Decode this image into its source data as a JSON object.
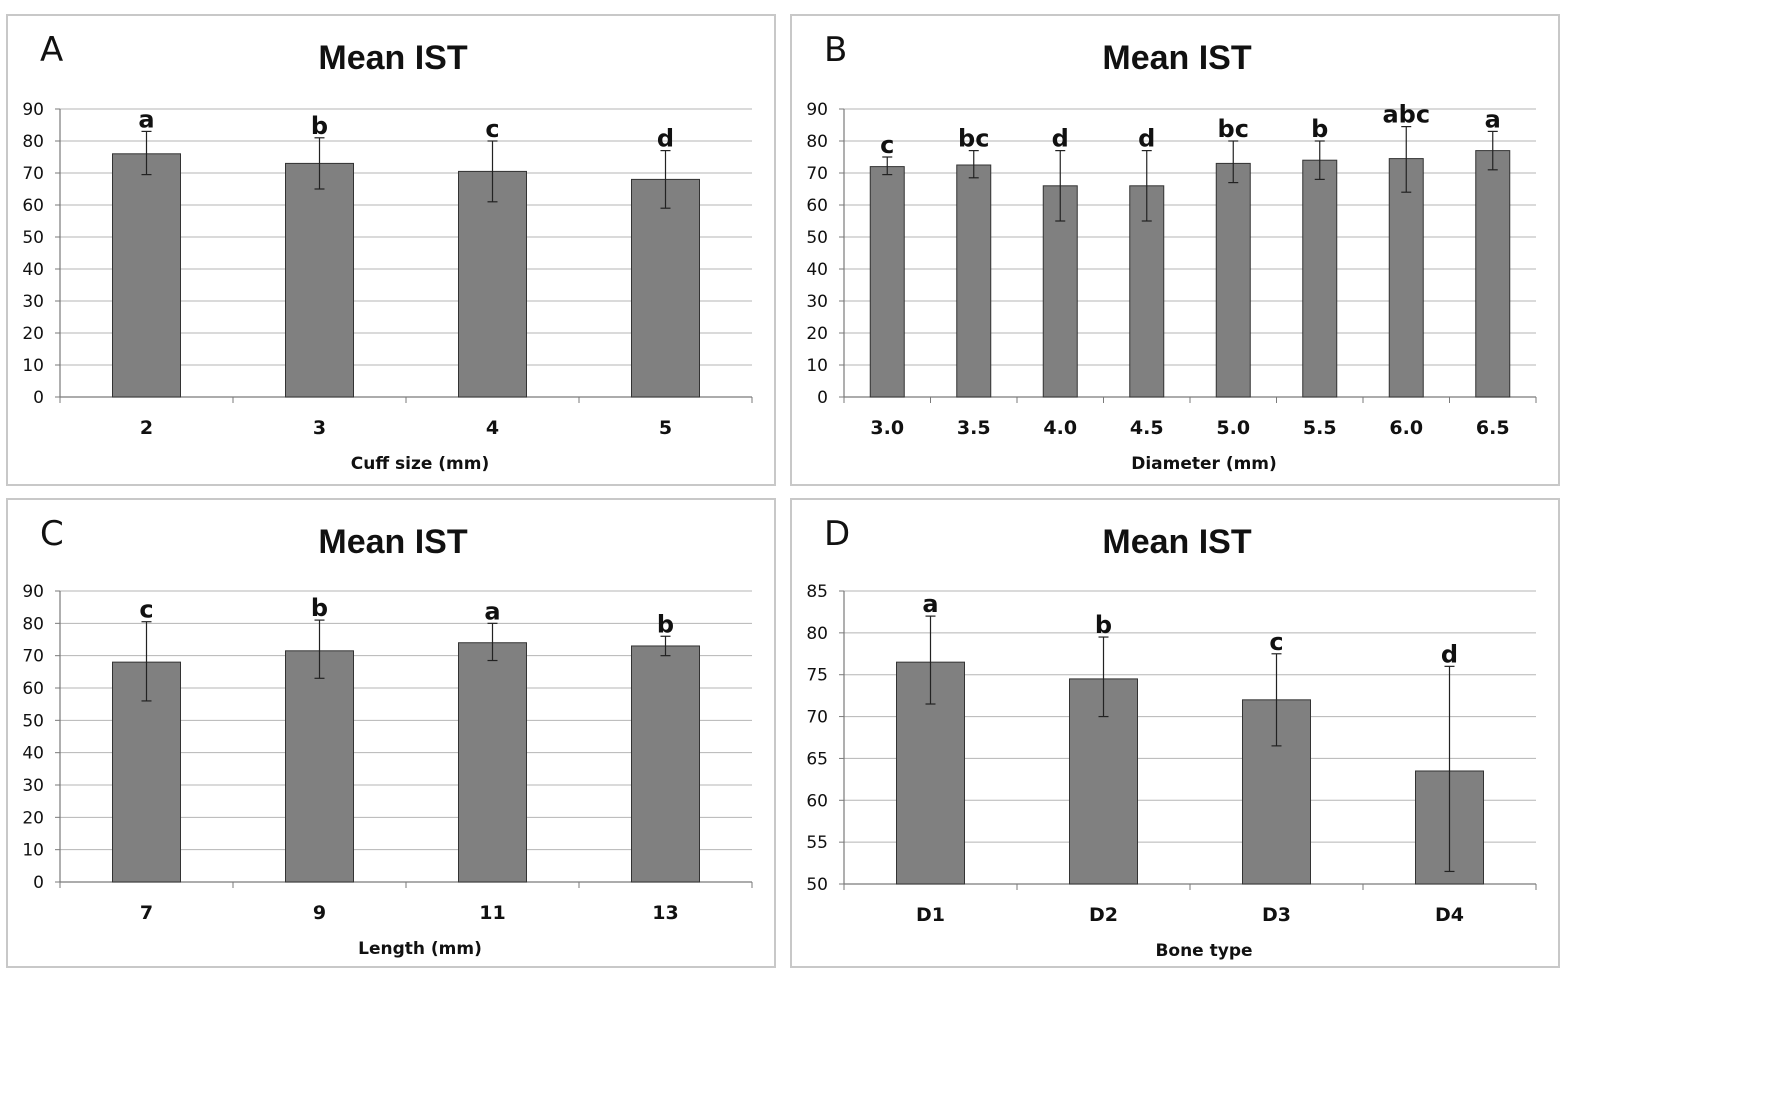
{
  "chart_data": [
    {
      "panel_letter": "A",
      "type": "bar",
      "title": "Mean IST",
      "xlabel": "Cuff size (mm)",
      "ylabel": "",
      "ylim": [
        0,
        90
      ],
      "yticks": [
        0,
        10,
        20,
        30,
        40,
        50,
        60,
        70,
        80,
        90
      ],
      "categories": [
        "2",
        "3",
        "4",
        "5"
      ],
      "values": [
        76,
        73,
        70.5,
        68
      ],
      "error_low": [
        69.5,
        65,
        61,
        59
      ],
      "error_high": [
        83,
        81,
        80,
        77
      ],
      "letters": [
        "a",
        "b",
        "c",
        "d"
      ],
      "grid": true,
      "bar_color": "#808080"
    },
    {
      "panel_letter": "B",
      "type": "bar",
      "title": "Mean IST",
      "xlabel": "Diameter (mm)",
      "ylabel": "",
      "ylim": [
        0,
        90
      ],
      "yticks": [
        0,
        10,
        20,
        30,
        40,
        50,
        60,
        70,
        80,
        90
      ],
      "categories": [
        "3.0",
        "3.5",
        "4.0",
        "4.5",
        "5.0",
        "5.5",
        "6.0",
        "6.5"
      ],
      "values": [
        72,
        72.5,
        66,
        66,
        73,
        74,
        74.5,
        77
      ],
      "error_low": [
        69.5,
        68.5,
        55,
        55,
        67,
        68,
        64,
        71
      ],
      "error_high": [
        75,
        77,
        77,
        77,
        80,
        80,
        84.5,
        83
      ],
      "letters": [
        "c",
        "bc",
        "d",
        "d",
        "bc",
        "b",
        "abc",
        "a"
      ],
      "grid": true,
      "bar_color": "#808080"
    },
    {
      "panel_letter": "C",
      "type": "bar",
      "title": "Mean IST",
      "xlabel": "Length (mm)",
      "ylabel": "",
      "ylim": [
        0,
        90
      ],
      "yticks": [
        0,
        10,
        20,
        30,
        40,
        50,
        60,
        70,
        80,
        90
      ],
      "categories": [
        "7",
        "9",
        "11",
        "13"
      ],
      "values": [
        68,
        71.5,
        74,
        73
      ],
      "error_low": [
        56,
        63,
        68.5,
        70
      ],
      "error_high": [
        80.5,
        81,
        80,
        76
      ],
      "letters": [
        "c",
        "b",
        "a",
        "b"
      ],
      "grid": true,
      "bar_color": "#808080"
    },
    {
      "panel_letter": "D",
      "type": "bar",
      "title": "Mean IST",
      "xlabel": "Bone type",
      "ylabel": "",
      "ylim": [
        50,
        85
      ],
      "yticks": [
        50,
        55,
        60,
        65,
        70,
        75,
        80,
        85
      ],
      "categories": [
        "D1",
        "D2",
        "D3",
        "D4"
      ],
      "values": [
        76.5,
        74.5,
        72,
        63.5
      ],
      "error_low": [
        71.5,
        70,
        66.5,
        51.5
      ],
      "error_high": [
        82,
        79.5,
        77.5,
        76
      ],
      "letters": [
        "a",
        "b",
        "c",
        "d"
      ],
      "grid": true,
      "bar_color": "#808080"
    }
  ]
}
